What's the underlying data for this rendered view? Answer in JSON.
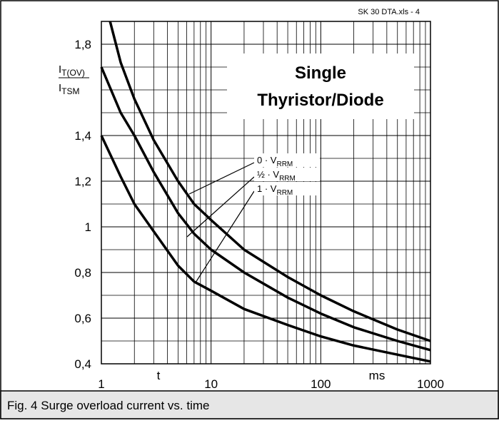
{
  "chart_data": {
    "type": "line",
    "header": "SK 30 DTA.xls - 4",
    "annotation": [
      "Single",
      "Thyristor/Diode"
    ],
    "caption": "Fig. 4 Surge overload current vs. time",
    "y_label": {
      "numerator": {
        "text": "I",
        "sub": "T(OV)"
      },
      "denominator": {
        "text": "I",
        "sub": "TSM"
      }
    },
    "x_label": "t",
    "x_unit": "ms",
    "log_x": true,
    "grid": true,
    "xlim": [
      1,
      1000
    ],
    "xticks": [
      1,
      10,
      100,
      1000
    ],
    "x_minor_grid": [
      2,
      3,
      4,
      5,
      6,
      7,
      8,
      9,
      20,
      30,
      40,
      50,
      60,
      70,
      80,
      90,
      200,
      300,
      400,
      500,
      600,
      700,
      800,
      900
    ],
    "ylim": [
      0.4,
      1.9
    ],
    "yticks": [
      {
        "value": 0.4,
        "label": "0,4"
      },
      {
        "value": 0.6,
        "label": "0,6"
      },
      {
        "value": 0.8,
        "label": "0,8"
      },
      1,
      {
        "value": 1.2,
        "label": "1,2"
      },
      {
        "value": 1.4,
        "label": "1,4"
      },
      {
        "value": 1.8,
        "label": "1,8"
      }
    ],
    "y_minor_grid": [
      0.5,
      0.7,
      0.9,
      1.1,
      1.3,
      1.5,
      1.6,
      1.7
    ],
    "series": [
      {
        "name": "0 · V",
        "name_sub": "RRM",
        "color": "#000000",
        "x": [
          1.2,
          1.5,
          2,
          3,
          5,
          7,
          10,
          20,
          50,
          100,
          200,
          500,
          1000
        ],
        "values": [
          1.9,
          1.72,
          1.56,
          1.38,
          1.2,
          1.1,
          1.03,
          0.9,
          0.78,
          0.7,
          0.63,
          0.55,
          0.5
        ]
      },
      {
        "name": "½ · V",
        "name_sub": "RRM",
        "color": "#000000",
        "x": [
          1,
          1.5,
          2,
          3,
          5,
          7,
          10,
          20,
          50,
          100,
          200,
          500,
          1000
        ],
        "values": [
          1.7,
          1.5,
          1.4,
          1.24,
          1.06,
          0.97,
          0.9,
          0.8,
          0.69,
          0.62,
          0.56,
          0.5,
          0.46
        ]
      },
      {
        "name": "1 · V",
        "name_sub": "RRM",
        "color": "#000000",
        "x": [
          1,
          1.5,
          2,
          3,
          5,
          7,
          10,
          20,
          50,
          100,
          200,
          500,
          1000
        ],
        "values": [
          1.4,
          1.22,
          1.1,
          0.98,
          0.83,
          0.76,
          0.72,
          0.64,
          0.57,
          0.52,
          0.48,
          0.44,
          0.41
        ]
      }
    ]
  }
}
